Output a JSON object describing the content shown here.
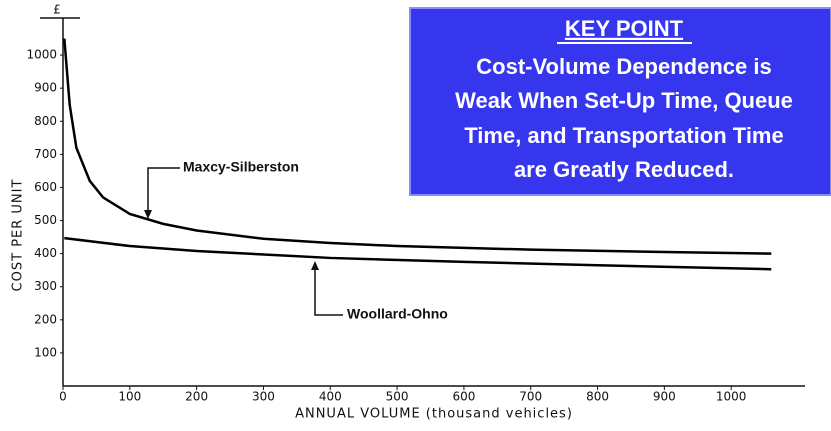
{
  "chart_data": {
    "type": "line",
    "y_unit": "£",
    "xlabel": "ANNUAL VOLUME (thousand vehicles)",
    "ylabel": "COST PER UNIT",
    "xlim": [
      0,
      1100
    ],
    "ylim": [
      0,
      1100
    ],
    "xticks": [
      0,
      100,
      200,
      300,
      400,
      500,
      600,
      700,
      800,
      900,
      1000
    ],
    "yticks": [
      100,
      200,
      300,
      400,
      500,
      600,
      700,
      800,
      900,
      1000
    ],
    "series": [
      {
        "name": "Maxcy-Silberston",
        "color": "#000000",
        "x": [
          2,
          10,
          20,
          40,
          60,
          100,
          150,
          200,
          300,
          400,
          500,
          700,
          900,
          1060
        ],
        "values": [
          1050,
          850,
          720,
          620,
          570,
          520,
          490,
          470,
          445,
          432,
          423,
          412,
          405,
          400
        ]
      },
      {
        "name": "Woollard-Ohno",
        "color": "#000000",
        "x": [
          2,
          100,
          200,
          400,
          600,
          800,
          1060
        ],
        "values": [
          447,
          423,
          408,
          387,
          375,
          365,
          353
        ]
      }
    ],
    "key_box": {
      "heading": "KEY POINT",
      "lines": [
        "Cost-Volume Dependence is",
        "Weak When Set-Up Time, Queue",
        "Time, and Transportation Time",
        "are Greatly Reduced."
      ]
    }
  }
}
